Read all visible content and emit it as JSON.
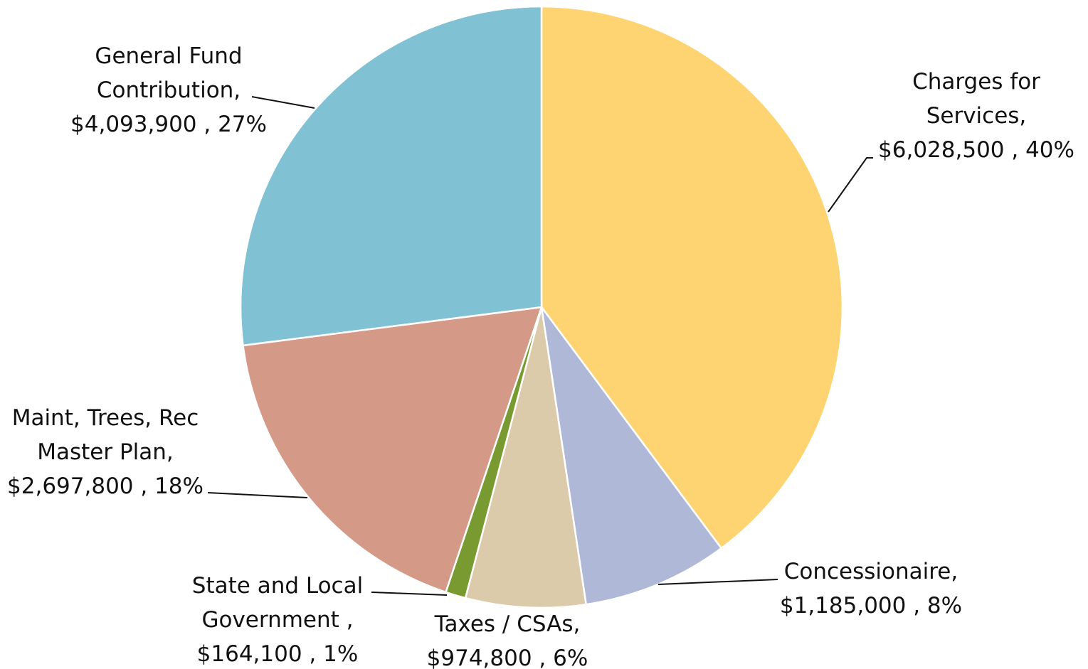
{
  "chart_data": {
    "type": "pie",
    "slices": [
      {
        "label": "Charges for Services",
        "value": 6028500,
        "value_text": "$6,028,500",
        "percent_text": "40%",
        "color": "#fdd471"
      },
      {
        "label": "Concessionaire",
        "value": 1185000,
        "value_text": "$1,185,000",
        "percent_text": "8%",
        "color": "#afb8d7"
      },
      {
        "label": "Taxes / CSAs",
        "value": 974800,
        "value_text": "$974,800",
        "percent_text": "6%",
        "color": "#dccbab"
      },
      {
        "label": "State and Local Government",
        "value": 164100,
        "value_text": "$164,100",
        "percent_text": "1%",
        "color": "#789a30"
      },
      {
        "label": "Maint, Trees, Rec Master Plan",
        "value": 2697800,
        "value_text": "$2,697,800",
        "percent_text": "18%",
        "color": "#d49a87"
      },
      {
        "label": "General Fund Contribution",
        "value": 4093900,
        "value_text": "$4,093,900",
        "percent_text": "27%",
        "color": "#80c1d3"
      }
    ],
    "start": "12 o'clock",
    "direction": "clockwise",
    "legend": "none"
  },
  "labels": [
    {
      "lines": [
        "Charges for",
        "Services,",
        "$6,028,500 , 40%"
      ]
    },
    {
      "lines": [
        "Concessionaire,",
        "$1,185,000 , 8%"
      ]
    },
    {
      "lines": [
        "Taxes / CSAs,",
        "$974,800 , 6%"
      ]
    },
    {
      "lines": [
        "State and Local",
        "Government ,",
        "$164,100 , 1%"
      ]
    },
    {
      "lines": [
        "Maint, Trees, Rec",
        "Master Plan,",
        "$2,697,800 , 18%"
      ]
    },
    {
      "lines": [
        "General Fund",
        "Contribution,",
        "$4,093,900 , 27%"
      ]
    }
  ]
}
